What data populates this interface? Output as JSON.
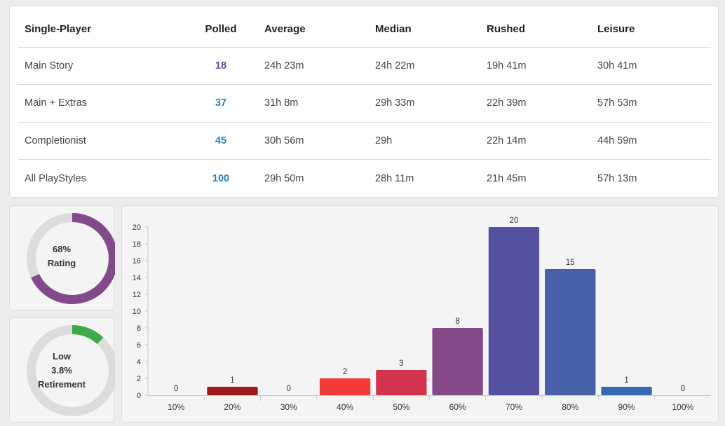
{
  "table": {
    "headers": [
      "Single-Player",
      "Polled",
      "Average",
      "Median",
      "Rushed",
      "Leisure"
    ],
    "rows": [
      {
        "label": "Main Story",
        "polled": "18",
        "average": "24h 23m",
        "median": "24h 22m",
        "rushed": "19h 41m",
        "leisure": "30h 41m",
        "polled_color": "#5a4ea3"
      },
      {
        "label": "Main + Extras",
        "polled": "37",
        "average": "31h 8m",
        "median": "29h 33m",
        "rushed": "22h 39m",
        "leisure": "57h 53m",
        "polled_color": "#2d7fbf"
      },
      {
        "label": "Completionist",
        "polled": "45",
        "average": "30h 56m",
        "median": "29h",
        "rushed": "22h 14m",
        "leisure": "44h 59m",
        "polled_color": "#2d7fbf"
      },
      {
        "label": "All PlayStyles",
        "polled": "100",
        "average": "29h 50m",
        "median": "28h 11m",
        "rushed": "21h 45m",
        "leisure": "57h 13m",
        "polled_color": "#2d7fbf"
      }
    ]
  },
  "rating": {
    "value_text": "68%",
    "label": "Rating",
    "fraction": 0.68,
    "color": "#824a8a",
    "track_color": "#dcdcdc"
  },
  "retirement": {
    "level_text": "Low",
    "value_text": "3.8%",
    "label": "Retirement",
    "fraction": 0.12,
    "color": "#3caa48",
    "track_color": "#dcdcdc"
  },
  "chart_data": {
    "type": "bar",
    "categories": [
      "10%",
      "20%",
      "30%",
      "40%",
      "50%",
      "60%",
      "70%",
      "80%",
      "90%",
      "100%"
    ],
    "values": [
      0,
      1,
      0,
      2,
      3,
      8,
      20,
      15,
      1,
      0
    ],
    "colors": [
      "#9e1b1b",
      "#9e1b1b",
      "#c0282b",
      "#f23a3a",
      "#d2344e",
      "#844a87",
      "#55509f",
      "#475ea9",
      "#3669b1",
      "#3669b1"
    ],
    "ylim": [
      0,
      20
    ],
    "yticks": [
      0,
      2,
      4,
      6,
      8,
      10,
      12,
      14,
      16,
      18,
      20
    ],
    "title": "",
    "xlabel": "",
    "ylabel": "",
    "grid": false,
    "data_labels": true
  }
}
